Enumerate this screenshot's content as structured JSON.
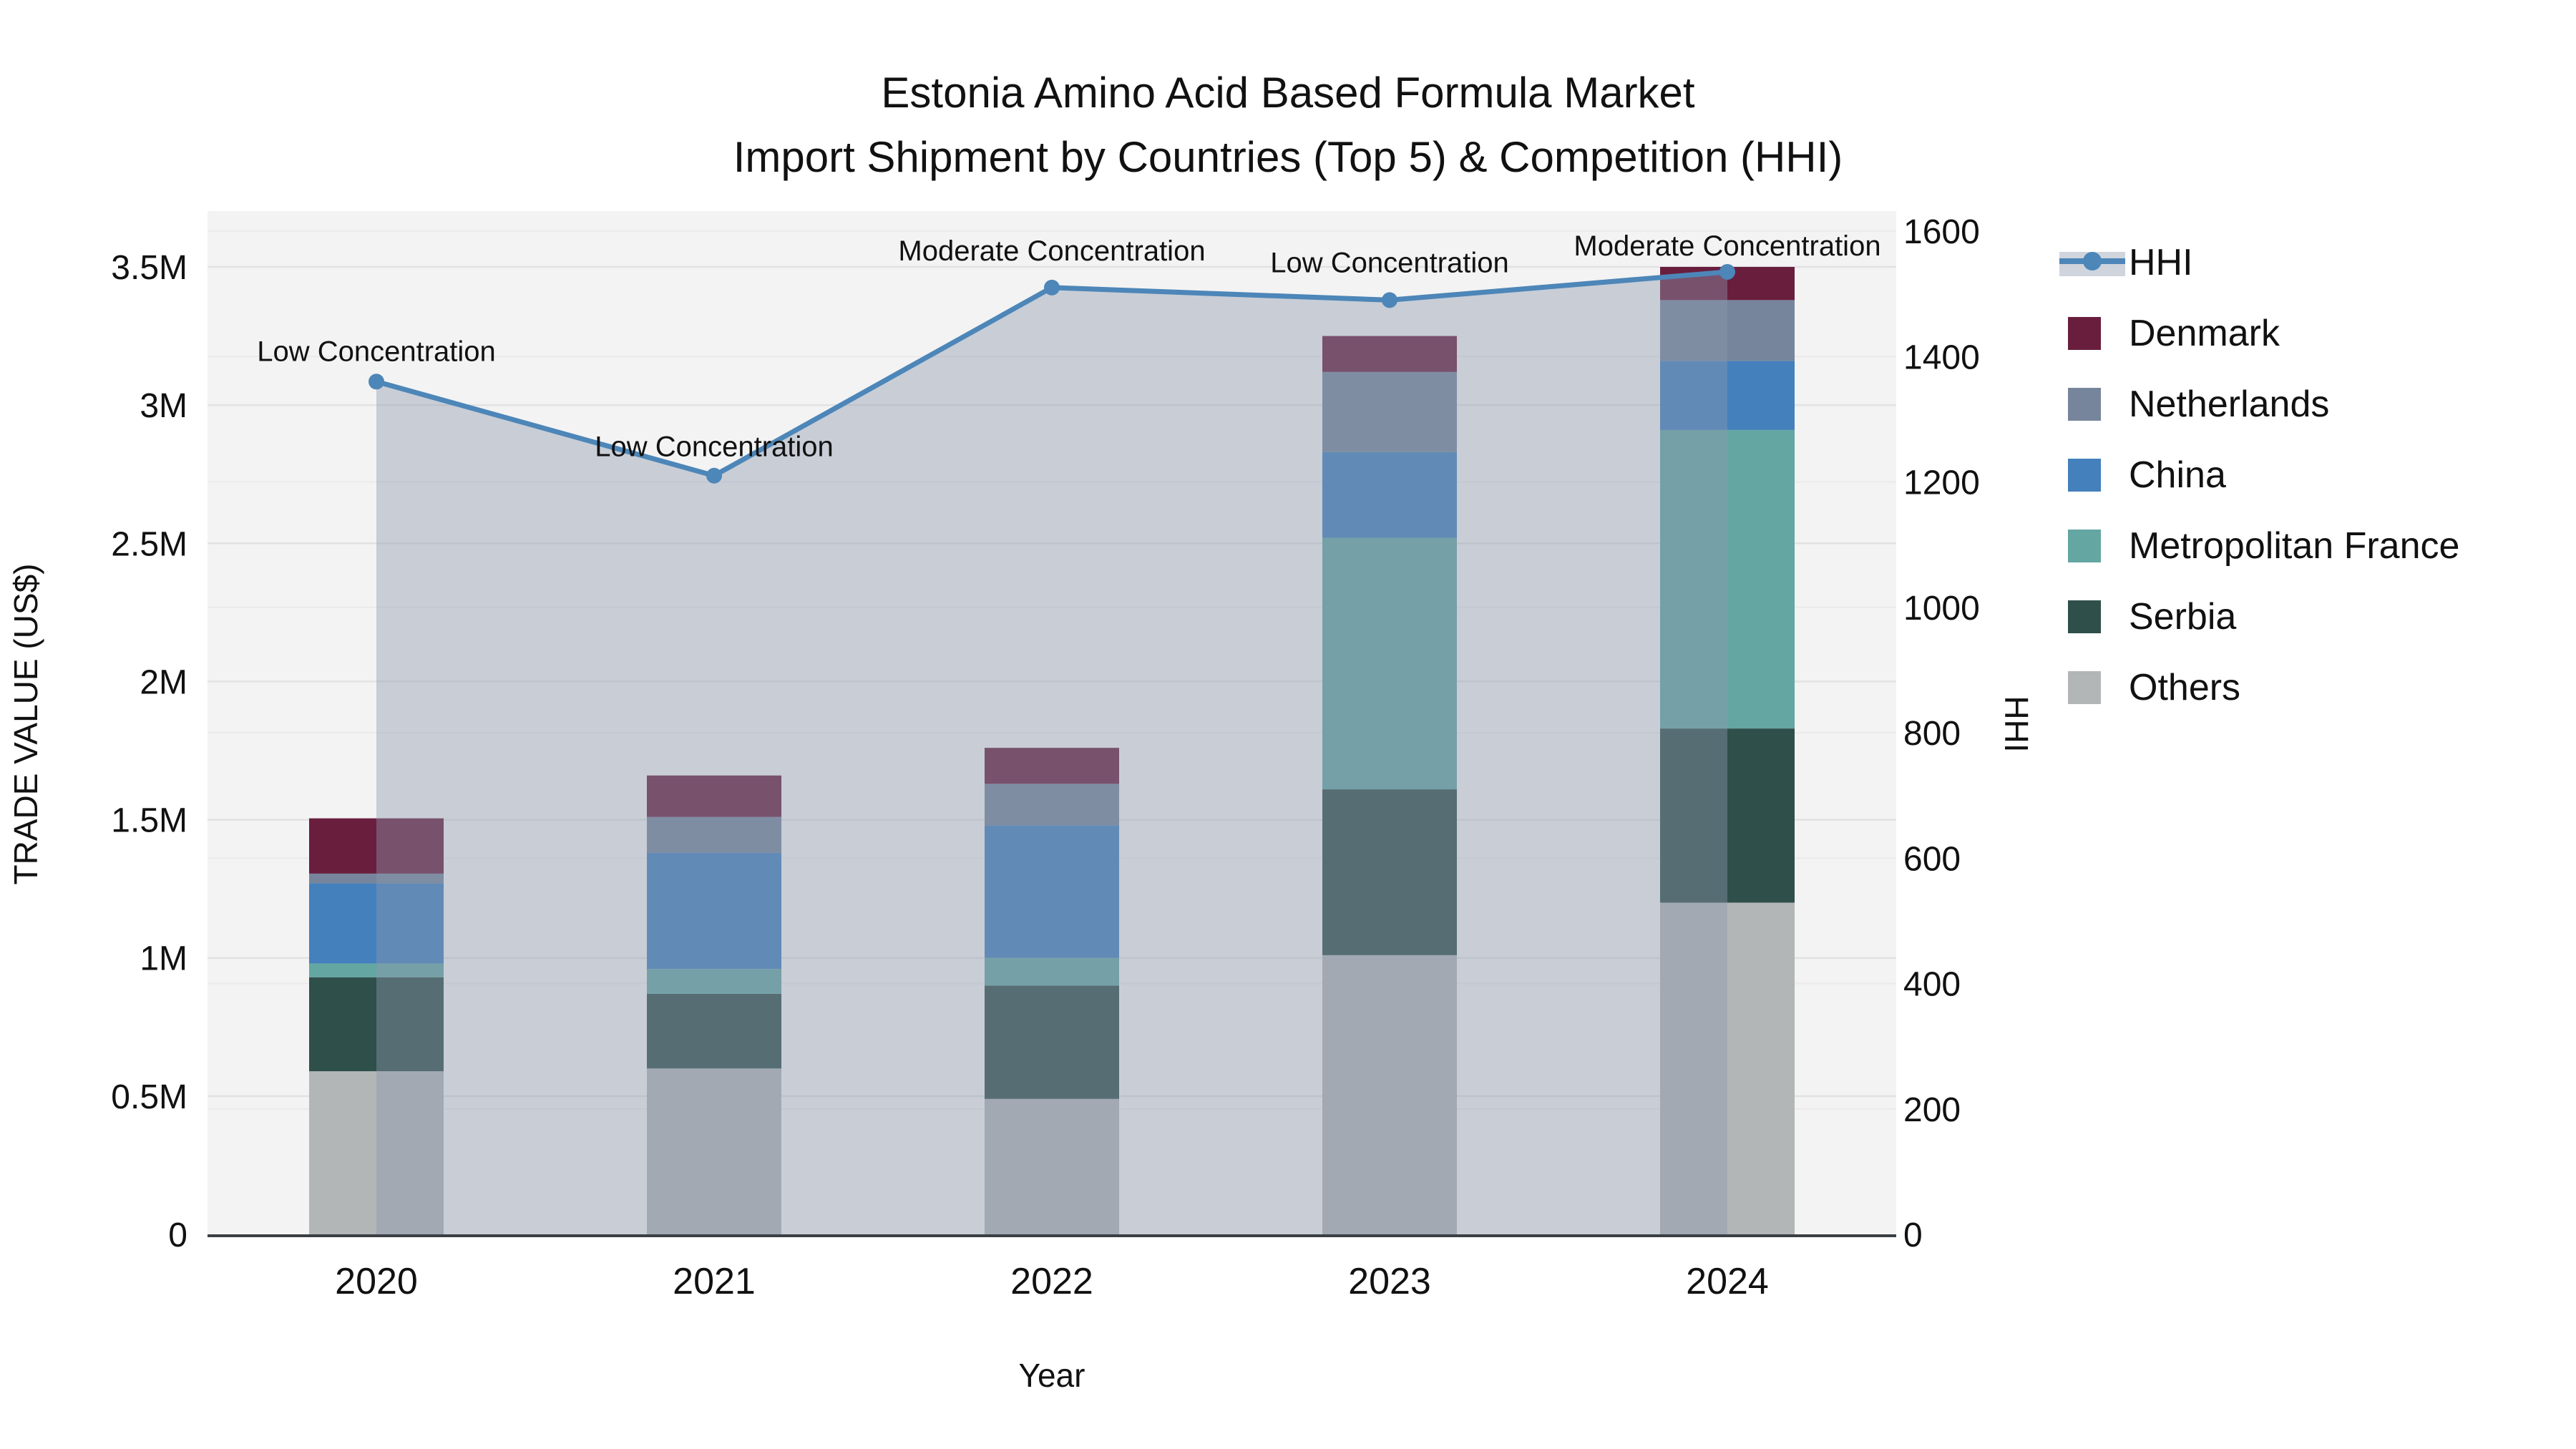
{
  "title": {
    "line1": "Estonia Amino Acid Based Formula Market",
    "line2": "Import Shipment by Countries (Top 5) & Competition (HHI)"
  },
  "axes": {
    "y_left": {
      "title": "TRADE VALUE (US$)",
      "tick_labels": [
        "0",
        "0.5M",
        "1M",
        "1.5M",
        "2M",
        "2.5M",
        "3M",
        "3.5M"
      ],
      "tick_values_musd": [
        0,
        0.5,
        1,
        1.5,
        2,
        2.5,
        3,
        3.5
      ],
      "max_musd": 3.5
    },
    "y_right": {
      "title": "HHI",
      "tick_values": [
        0,
        200,
        400,
        600,
        800,
        1000,
        1200,
        1400,
        1600
      ],
      "max": 1600
    },
    "x": {
      "title": "Year",
      "categories": [
        "2020",
        "2021",
        "2022",
        "2023",
        "2024"
      ]
    }
  },
  "legend": {
    "items": [
      {
        "label": "HHI",
        "type": "line",
        "color": "#4d86b8",
        "band_color": "#cfd4dd"
      },
      {
        "label": "Denmark",
        "type": "swatch",
        "color": "#691e3e"
      },
      {
        "label": "Netherlands",
        "type": "swatch",
        "color": "#76859b"
      },
      {
        "label": "China",
        "type": "swatch",
        "color": "#4480bc"
      },
      {
        "label": "Metropolitan France",
        "type": "swatch",
        "color": "#64a6a2"
      },
      {
        "label": "Serbia",
        "type": "swatch",
        "color": "#2f4f4a"
      },
      {
        "label": "Others",
        "type": "swatch",
        "color": "#b3b6b7"
      }
    ]
  },
  "chart_data": {
    "type": "bar",
    "stacked": true,
    "title": "Estonia Amino Acid Based Formula Market — Import Shipment by Countries (Top 5) & Competition (HHI)",
    "xlabel": "Year",
    "ylabel_left": "TRADE VALUE (US$)",
    "ylabel_right": "HHI",
    "ylim_left_musd": [
      0,
      3.5
    ],
    "ylim_right": [
      0,
      1600
    ],
    "grid": true,
    "legend_position": "right",
    "categories": [
      "2020",
      "2021",
      "2022",
      "2023",
      "2024"
    ],
    "series": [
      {
        "name": "Others",
        "color": "#b3b6b7",
        "values_musd": [
          0.59,
          0.6,
          0.49,
          1.01,
          1.2
        ]
      },
      {
        "name": "Serbia",
        "color": "#2f4f4a",
        "values_musd": [
          0.34,
          0.27,
          0.41,
          0.6,
          0.63
        ]
      },
      {
        "name": "Metropolitan France",
        "color": "#64a6a2",
        "values_musd": [
          0.05,
          0.09,
          0.1,
          0.91,
          1.08
        ]
      },
      {
        "name": "China",
        "color": "#4480bc",
        "values_musd": [
          0.29,
          0.42,
          0.48,
          0.31,
          0.25
        ]
      },
      {
        "name": "Netherlands",
        "color": "#76859b",
        "values_musd": [
          0.035,
          0.13,
          0.15,
          0.29,
          0.22
        ]
      },
      {
        "name": "Denmark",
        "color": "#691e3e",
        "values_musd": [
          0.2,
          0.15,
          0.13,
          0.13,
          0.12
        ]
      }
    ],
    "bar_totals_musd": [
      1.505,
      1.66,
      1.76,
      3.25,
      3.5
    ],
    "line_series": {
      "name": "HHI",
      "axis": "right",
      "color": "#4d86b8",
      "area_fill": "rgba(140,152,175,0.42)",
      "values": [
        1360,
        1210,
        1510,
        1490,
        1535
      ]
    },
    "annotations": [
      {
        "category": "2020",
        "text": "Low Concentration"
      },
      {
        "category": "2021",
        "text": "Low Concentration"
      },
      {
        "category": "2022",
        "text": "Moderate Concentration"
      },
      {
        "category": "2023",
        "text": "Low Concentration"
      },
      {
        "category": "2024",
        "text": "Moderate Concentration"
      }
    ],
    "plot_bg_color": "#f3f3f3",
    "gridline_color_left": "#e2e2e2",
    "gridline_color_right": "#eceaea",
    "baseline_color": "#3a3f44"
  }
}
